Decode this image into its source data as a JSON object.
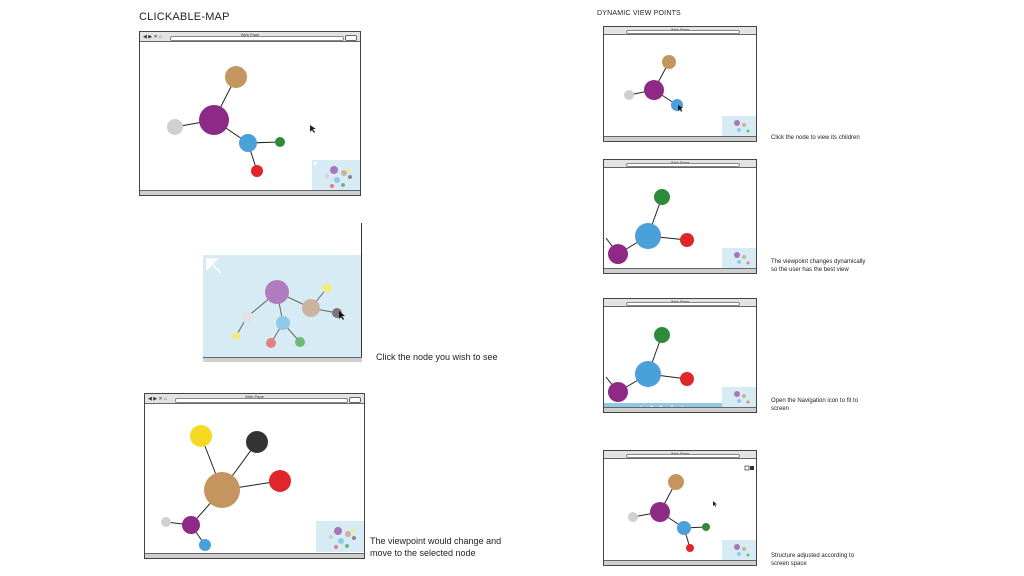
{
  "left_title": "CLICKABLE-MAP",
  "right_title": "DYNAMIC VIEW POINTS",
  "captions": {
    "zoomed": "Click the node you wish to see",
    "selected_line1": "The viewpoint would change and",
    "selected_line2": "move to the selected node"
  },
  "side_captions": [
    {
      "line1": "Click the node to view its children",
      "line2": ""
    },
    {
      "line1": "The viewpoint changes dynamically",
      "line2": "so the user has the best view"
    },
    {
      "line1": "Open the Navigation icon to fit to",
      "line2": "screen"
    },
    {
      "line1": "Structure adjusted according to",
      "line2": "screen space"
    }
  ],
  "browser_title": "Web Page",
  "colors": {
    "purple": "#8e2a86",
    "tan": "#c4955f",
    "blue": "#4aa0d8",
    "green": "#2e8b3a",
    "red": "#e0262a",
    "grey": "#d0d0d0",
    "yellow": "#f5d923",
    "black": "#333333",
    "minimap": "#d7ebf4"
  },
  "icons": [
    "back-icon",
    "forward-icon",
    "close-icon",
    "home-icon",
    "cursor-icon",
    "expand-arrow-icon",
    "navigation-icon"
  ]
}
